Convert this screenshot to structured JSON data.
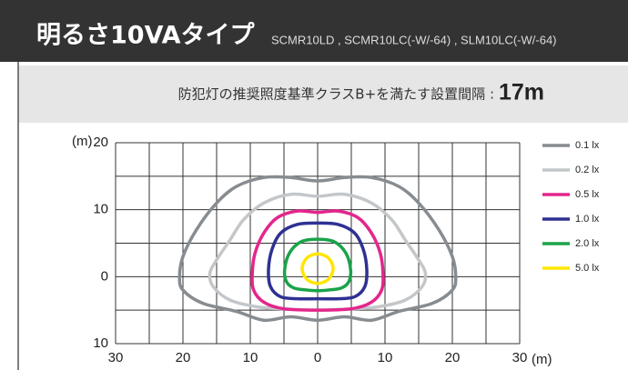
{
  "header": {
    "title": "明るさ10VAタイプ",
    "subtitle": "SCMR10LD , SCMR10LC(-W/-64) , SLM10LC(-W/-64)"
  },
  "banner": {
    "text": "防犯灯の推奨照度基準クラスB+を満たす設置間隔 :",
    "value": "17m"
  },
  "chart_data": {
    "type": "contour",
    "xlabel": "(m)",
    "ylabel": "(m)",
    "xlim": [
      -30,
      30
    ],
    "ylim": [
      -10,
      20
    ],
    "xticks": [
      {
        "value": -30,
        "label": "30"
      },
      {
        "value": -20,
        "label": "20"
      },
      {
        "value": -10,
        "label": "10"
      },
      0,
      10,
      20,
      30
    ],
    "yticks": [
      20,
      10,
      0,
      {
        "value": -10,
        "label": "10"
      }
    ],
    "xgrid": [
      -25,
      -15,
      -5,
      5,
      15,
      25
    ],
    "ygrid": [
      15,
      5,
      -5
    ],
    "grid": true,
    "legend": "right",
    "series": [
      {
        "name": "0.1 lx",
        "color": "#878c91",
        "x": [
          0,
          4,
          8,
          12,
          15,
          18,
          20,
          20.5,
          20,
          17,
          12,
          8,
          4,
          0,
          -4,
          -8,
          -12,
          -17,
          -20,
          -20.5,
          -20,
          -18,
          -15,
          -12,
          -8,
          -4
        ],
        "values": [
          14.3,
          14.8,
          14.8,
          13.5,
          11,
          7,
          3,
          0,
          -2,
          -4,
          -5.2,
          -6.5,
          -6,
          -6.5,
          -6,
          -6.5,
          -5.2,
          -4,
          -2,
          0,
          3,
          7,
          11,
          13.5,
          14.8,
          14.8
        ]
      },
      {
        "name": "0.2 lx",
        "color": "#c4c7ca",
        "x": [
          0,
          4,
          8,
          11,
          13,
          15,
          16,
          15.5,
          13,
          9,
          5,
          0,
          -5,
          -9,
          -13,
          -15.5,
          -16,
          -15,
          -13,
          -11,
          -8,
          -4
        ],
        "values": [
          12,
          12.3,
          11,
          8.5,
          5.5,
          2.5,
          0.5,
          -1.5,
          -3.5,
          -4.5,
          -4.8,
          -5,
          -4.8,
          -4.5,
          -3.5,
          -1.5,
          0.5,
          2.5,
          5.5,
          8.5,
          11,
          12.3
        ]
      },
      {
        "name": "0.5 lx",
        "color": "#e4268b",
        "x": [
          0,
          3,
          6,
          8,
          9.3,
          9.7,
          9.5,
          8,
          5,
          0,
          -5,
          -8,
          -9.5,
          -9.7,
          -9.3,
          -8,
          -6,
          -3
        ],
        "values": [
          9.6,
          9.8,
          8.8,
          6.5,
          3.5,
          0.5,
          -2,
          -3.8,
          -4.8,
          -5,
          -4.8,
          -3.8,
          -2,
          0.5,
          3.5,
          6.5,
          8.8,
          9.8
        ]
      },
      {
        "name": "1.0 lx",
        "color": "#2e3192",
        "x": [
          0,
          3,
          5.5,
          6.8,
          7.3,
          7,
          5.5,
          3,
          0,
          -3,
          -5.5,
          -7,
          -7.3,
          -6.8,
          -5.5,
          -3
        ],
        "values": [
          8,
          7.8,
          6.5,
          4,
          1,
          -1.5,
          -3,
          -3.3,
          -3.3,
          -3.3,
          -3,
          -1.5,
          1,
          4,
          6.5,
          7.8
        ]
      },
      {
        "name": "2.0 lx",
        "color": "#1aa34a",
        "x": [
          0,
          2.5,
          4.2,
          4.9,
          4.6,
          3.5,
          1.5,
          0,
          -1.5,
          -3.5,
          -4.6,
          -4.9,
          -4.2,
          -2.5
        ],
        "values": [
          5.6,
          5.2,
          3.5,
          1,
          -0.8,
          -1.7,
          -2,
          -2.1,
          -2,
          -1.7,
          -0.8,
          1,
          3.5,
          5.2
        ]
      },
      {
        "name": "5.0 lx",
        "color": "#ffe600",
        "x": [
          0,
          1.6,
          2.3,
          1.6,
          0,
          -1.6,
          -2.3,
          -1.6
        ],
        "values": [
          3.4,
          2.8,
          1.2,
          -0.4,
          -1,
          -0.4,
          1.2,
          2.8
        ]
      }
    ]
  }
}
